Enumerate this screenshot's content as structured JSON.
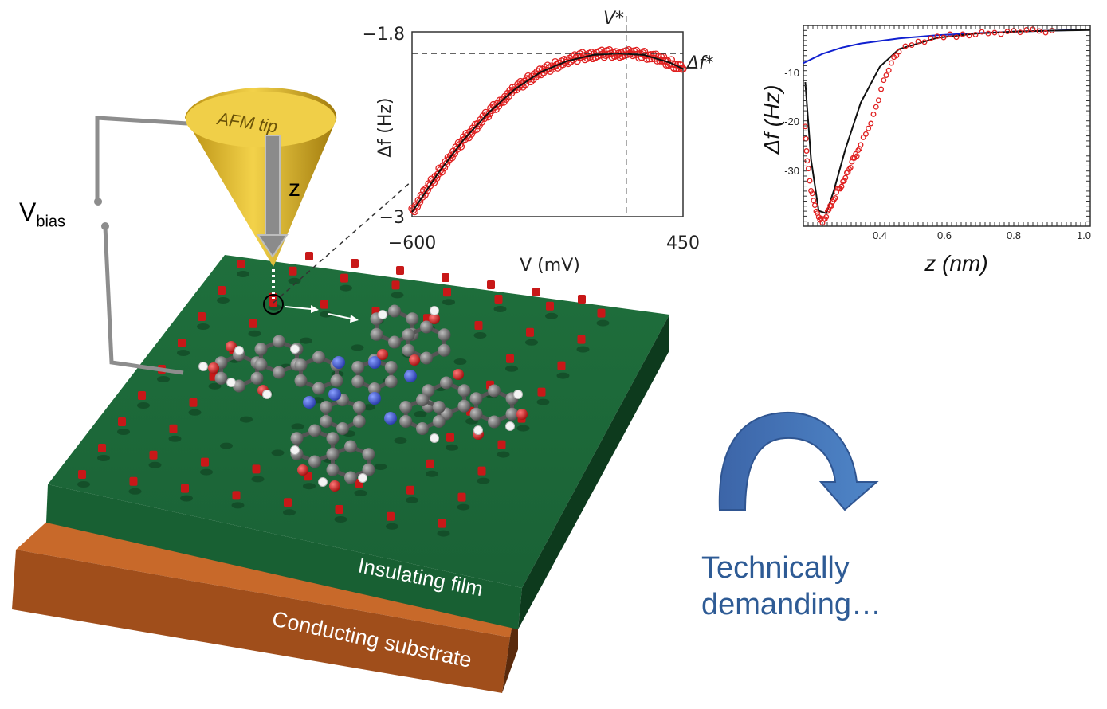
{
  "scheme": {
    "afm_tip_label": "AFM tip",
    "z_label": "z",
    "vbias_main": "V",
    "vbias_sub": "bias",
    "film_label": "Insulating film",
    "substrate_label": "Conducting substrate",
    "colors": {
      "tip": "#e8c23a",
      "film": "#1d6a3a",
      "substrate": "#b25a22",
      "adatom": "#c81818"
    }
  },
  "chart_data": [
    {
      "type": "scatter",
      "xlabel": "V (mV)",
      "ylabel": "Δf (Hz)",
      "xlim": [
        -600,
        450
      ],
      "ylim": [
        -3,
        -1.8
      ],
      "x_ticks": [
        "−600",
        "450"
      ],
      "y_ticks": [
        "−1.8",
        "−3"
      ],
      "annotations": {
        "vstar": "V*",
        "dfstar": "Δf*",
        "vstar_x": 230,
        "dfstar_y": -1.94
      },
      "series": [
        {
          "kind": "points",
          "color": "#e02020",
          "x": [
            -600,
            -550,
            -500,
            -450,
            -400,
            -350,
            -300,
            -250,
            -200,
            -150,
            -100,
            -50,
            0,
            50,
            100,
            150,
            200,
            250,
            300,
            350,
            400,
            450
          ],
          "y": [
            -2.97,
            -2.84,
            -2.72,
            -2.61,
            -2.5,
            -2.41,
            -2.32,
            -2.24,
            -2.17,
            -2.11,
            -2.06,
            -2.02,
            -1.99,
            -1.96,
            -1.95,
            -1.94,
            -1.94,
            -1.94,
            -1.95,
            -1.97,
            -2.0,
            -2.04
          ]
        },
        {
          "kind": "fit",
          "color": "#111111",
          "x": [
            -600,
            -500,
            -400,
            -300,
            -200,
            -100,
            0,
            100,
            200,
            300,
            400,
            450
          ],
          "y": [
            -2.97,
            -2.72,
            -2.5,
            -2.32,
            -2.17,
            -2.06,
            -1.99,
            -1.95,
            -1.94,
            -1.95,
            -2.0,
            -2.04
          ]
        }
      ]
    },
    {
      "type": "line",
      "xlabel": "z (nm)",
      "ylabel": "Δf (Hz)",
      "xlim": [
        0.25,
        1.0
      ],
      "ylim": [
        -39,
        0
      ],
      "x_ticks": [
        "0.4",
        "0.6",
        "0.8",
        "1.0"
      ],
      "y_ticks": [
        "-10",
        "-20",
        "-30"
      ],
      "series": [
        {
          "kind": "line",
          "color": "#1020d0",
          "x": [
            0.25,
            0.3,
            0.35,
            0.4,
            0.5,
            0.6,
            0.7,
            0.8,
            0.9,
            1.0
          ],
          "y": [
            -7.3,
            -5.5,
            -4.3,
            -3.5,
            -2.5,
            -1.9,
            -1.5,
            -1.2,
            -1.0,
            -0.8
          ]
        },
        {
          "kind": "line",
          "color": "#111111",
          "x": [
            0.255,
            0.27,
            0.29,
            0.31,
            0.33,
            0.36,
            0.4,
            0.45,
            0.5,
            0.6,
            0.7,
            0.8,
            0.9,
            1.0
          ],
          "y": [
            -11,
            -26,
            -36,
            -36.5,
            -32,
            -24,
            -15,
            -8,
            -4.6,
            -2.4,
            -1.6,
            -1.2,
            -1.0,
            -0.9
          ]
        },
        {
          "kind": "points",
          "color": "#e02020",
          "x": [
            0.255,
            0.26,
            0.27,
            0.28,
            0.29,
            0.3,
            0.31,
            0.32,
            0.33,
            0.34,
            0.35,
            0.36,
            0.37,
            0.38,
            0.39,
            0.4,
            0.42,
            0.44,
            0.46,
            0.48,
            0.5,
            0.55,
            0.6,
            0.65,
            0.7,
            0.75,
            0.8,
            0.85,
            0.9
          ],
          "y": [
            -20,
            -26,
            -32,
            -35,
            -37.5,
            -38,
            -37,
            -35,
            -34,
            -32,
            -31,
            -29.5,
            -28,
            -26,
            -25,
            -23,
            -20,
            -16,
            -11,
            -7,
            -5,
            -3.2,
            -2.4,
            -1.9,
            -1.6,
            -1.4,
            -1.2,
            -1.1,
            -1.0
          ]
        }
      ]
    }
  ],
  "note": {
    "line1": "Technically",
    "line2": "demanding…"
  }
}
